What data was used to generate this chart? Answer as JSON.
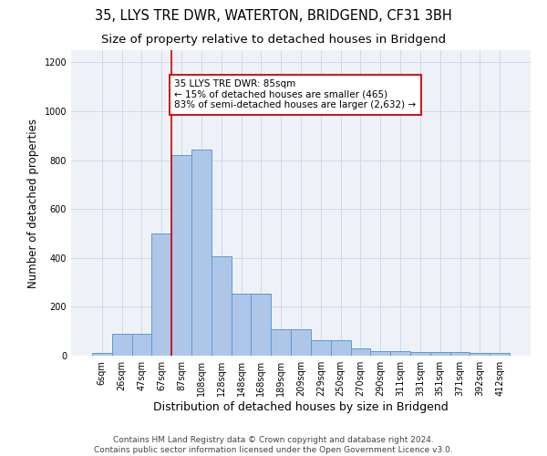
{
  "title": "35, LLYS TRE DWR, WATERTON, BRIDGEND, CF31 3BH",
  "subtitle": "Size of property relative to detached houses in Bridgend",
  "xlabel": "Distribution of detached houses by size in Bridgend",
  "ylabel": "Number of detached properties",
  "bin_labels": [
    "6sqm",
    "26sqm",
    "47sqm",
    "67sqm",
    "87sqm",
    "108sqm",
    "128sqm",
    "148sqm",
    "168sqm",
    "189sqm",
    "209sqm",
    "229sqm",
    "250sqm",
    "270sqm",
    "290sqm",
    "311sqm",
    "331sqm",
    "351sqm",
    "371sqm",
    "392sqm",
    "412sqm"
  ],
  "bar_heights": [
    10,
    90,
    90,
    500,
    820,
    845,
    405,
    255,
    255,
    110,
    110,
    65,
    65,
    30,
    20,
    20,
    15,
    15,
    15,
    10,
    10
  ],
  "bar_color": "#aec6e8",
  "bar_edge_color": "#5b9bd5",
  "annotation_text": "35 LLYS TRE DWR: 85sqm\n← 15% of detached houses are smaller (465)\n83% of semi-detached houses are larger (2,632) →",
  "vline_pos": 3.5,
  "vline_color": "#cc0000",
  "annotation_box_edge": "#cc0000",
  "ylim": [
    0,
    1250
  ],
  "yticks": [
    0,
    200,
    400,
    600,
    800,
    1000,
    1200
  ],
  "grid_color": "#d0d8e8",
  "bg_color": "#eef2f8",
  "footer": "Contains HM Land Registry data © Crown copyright and database right 2024.\nContains public sector information licensed under the Open Government Licence v3.0.",
  "title_fontsize": 10.5,
  "subtitle_fontsize": 9.5,
  "xlabel_fontsize": 9,
  "ylabel_fontsize": 8.5,
  "tick_fontsize": 7,
  "footer_fontsize": 6.5,
  "annot_fontsize": 7.5
}
